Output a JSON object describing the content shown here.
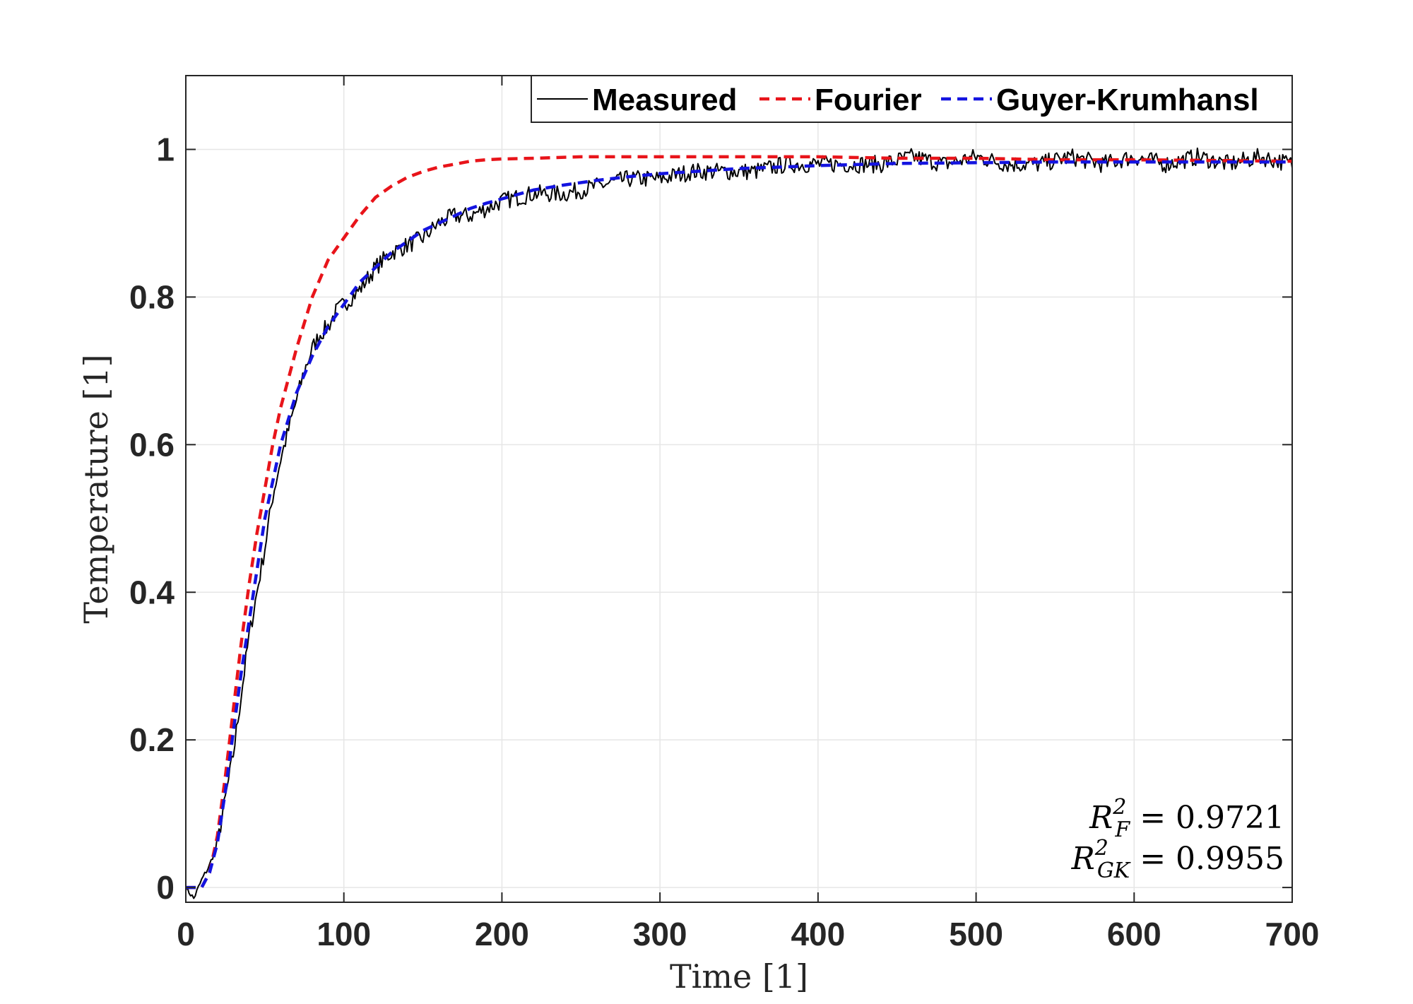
{
  "chart_data": {
    "type": "line",
    "xlabel": "Time [1]",
    "ylabel": "Temperature [1]",
    "xlim": [
      0,
      700
    ],
    "ylim": [
      -0.02,
      1.1
    ],
    "xticks": [
      0,
      100,
      200,
      300,
      400,
      500,
      600,
      700
    ],
    "xtick_labels": [
      "0",
      "100",
      "200",
      "300",
      "400",
      "500",
      "600",
      "700"
    ],
    "yticks": [
      0,
      0.2,
      0.4,
      0.6,
      0.8,
      1
    ],
    "ytick_labels": [
      "0",
      "0.2",
      "0.4",
      "0.6",
      "0.8",
      "1"
    ],
    "grid": true,
    "legend_position": "top-right",
    "colors": {
      "measured": "#000000",
      "fourier": "#e8141a",
      "gk": "#1414e0",
      "axis": "#262626",
      "grid": "#e6e6e6"
    },
    "series": [
      {
        "name": "Measured",
        "style": "solid",
        "x": [
          0,
          5,
          10,
          15,
          20,
          25,
          30,
          35,
          40,
          45,
          50,
          55,
          60,
          65,
          70,
          75,
          80,
          85,
          90,
          95,
          100,
          110,
          120,
          130,
          140,
          150,
          160,
          170,
          180,
          190,
          200,
          220,
          240,
          260,
          280,
          300,
          320,
          340,
          360,
          380,
          400,
          420,
          440,
          460,
          480,
          500,
          520,
          540,
          560,
          580,
          600,
          620,
          640,
          660,
          680,
          700
        ],
        "y": [
          0.0,
          -0.015,
          0.01,
          0.03,
          0.06,
          0.12,
          0.18,
          0.26,
          0.34,
          0.4,
          0.46,
          0.53,
          0.58,
          0.62,
          0.66,
          0.7,
          0.73,
          0.75,
          0.76,
          0.78,
          0.79,
          0.81,
          0.84,
          0.86,
          0.87,
          0.88,
          0.9,
          0.91,
          0.91,
          0.92,
          0.93,
          0.94,
          0.94,
          0.95,
          0.96,
          0.96,
          0.97,
          0.97,
          0.97,
          0.98,
          0.98,
          0.98,
          0.98,
          0.99,
          0.98,
          0.99,
          0.98,
          0.98,
          0.99,
          0.98,
          0.99,
          0.98,
          0.99,
          0.98,
          0.99,
          0.98
        ]
      },
      {
        "name": "Fourier",
        "style": "dashed",
        "x": [
          0,
          10,
          15,
          20,
          25,
          30,
          35,
          40,
          45,
          50,
          55,
          60,
          70,
          80,
          90,
          100,
          110,
          120,
          130,
          140,
          150,
          160,
          170,
          180,
          190,
          200,
          220,
          250,
          280,
          300,
          350,
          400,
          450,
          500,
          550,
          600,
          650,
          700
        ],
        "y": [
          0.0,
          0.0,
          0.02,
          0.07,
          0.15,
          0.24,
          0.33,
          0.41,
          0.48,
          0.54,
          0.6,
          0.65,
          0.73,
          0.8,
          0.85,
          0.88,
          0.91,
          0.935,
          0.95,
          0.962,
          0.97,
          0.976,
          0.98,
          0.984,
          0.986,
          0.987,
          0.988,
          0.99,
          0.99,
          0.99,
          0.99,
          0.99,
          0.988,
          0.988,
          0.986,
          0.986,
          0.985,
          0.984
        ]
      },
      {
        "name": "Guyer-Krumhansl",
        "style": "dashed",
        "x": [
          0,
          10,
          15,
          20,
          25,
          30,
          35,
          40,
          45,
          50,
          55,
          60,
          70,
          80,
          90,
          100,
          110,
          120,
          130,
          140,
          150,
          160,
          170,
          180,
          190,
          200,
          220,
          240,
          260,
          280,
          300,
          350,
          400,
          450,
          500,
          550,
          600,
          650,
          700
        ],
        "y": [
          0.0,
          0.0,
          0.02,
          0.06,
          0.13,
          0.21,
          0.29,
          0.36,
          0.43,
          0.5,
          0.55,
          0.6,
          0.67,
          0.72,
          0.76,
          0.79,
          0.82,
          0.84,
          0.86,
          0.875,
          0.89,
          0.9,
          0.91,
          0.92,
          0.927,
          0.933,
          0.945,
          0.952,
          0.958,
          0.963,
          0.967,
          0.974,
          0.978,
          0.981,
          0.982,
          0.983,
          0.983,
          0.983,
          0.983
        ]
      }
    ],
    "annotations": [
      {
        "symbol": "R",
        "sup": "2",
        "sub": "F",
        "equals": "= 0.9721"
      },
      {
        "symbol": "R",
        "sup": "2",
        "sub": "GK",
        "equals": "= 0.9955"
      }
    ]
  }
}
